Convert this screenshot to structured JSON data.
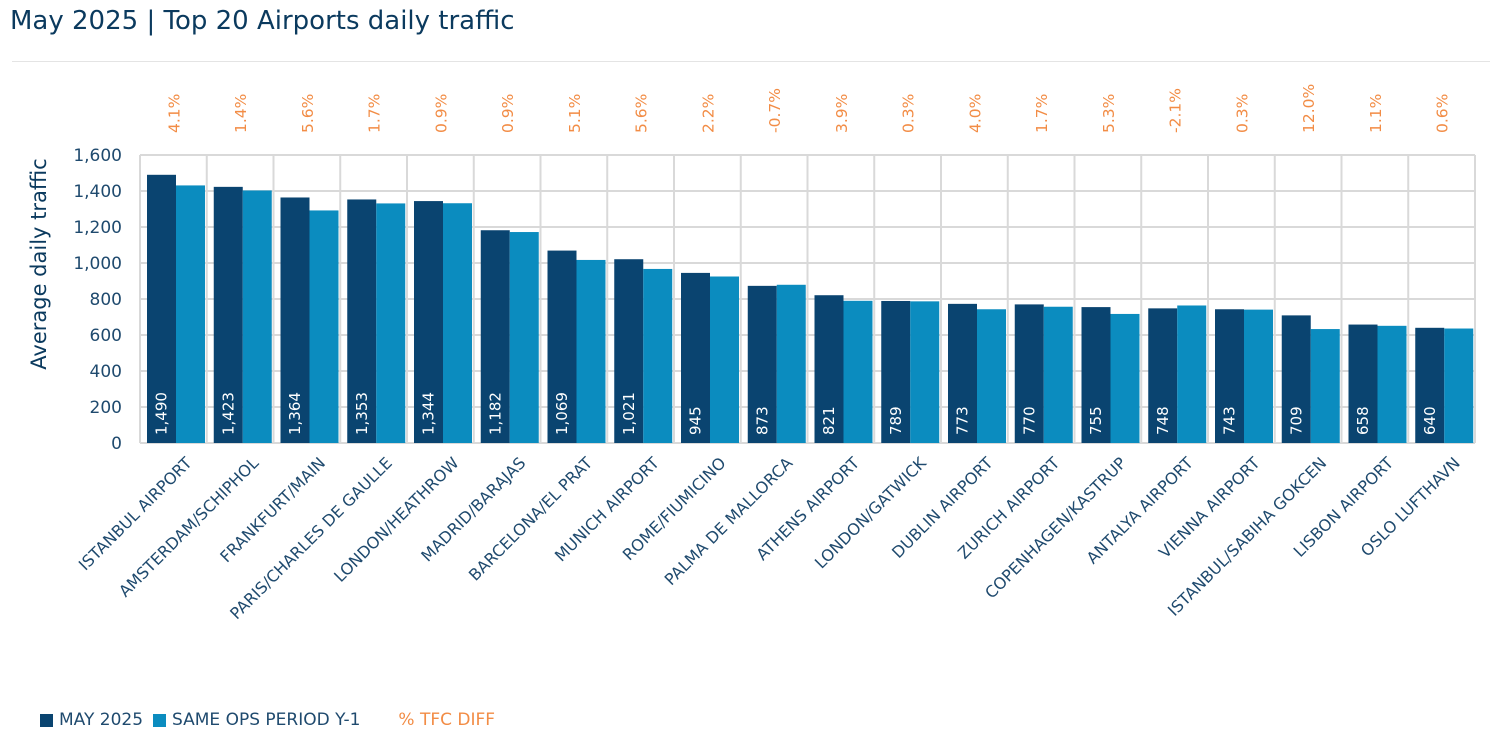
{
  "title": "May 2025 | Top 20 Airports daily traffic",
  "colors": {
    "may": "#0a4470",
    "prev": "#0b8cbf",
    "pct": "#f28c45",
    "axis": "#1f4a6e",
    "grid": "#d9d9d9"
  },
  "legend": {
    "may": "MAY 2025",
    "prev": "SAME OPS PERIOD Y-1",
    "pct": "% TFC DIFF"
  },
  "chart_data": {
    "type": "bar",
    "ylabel": "Average daily traffic",
    "ylim": [
      0,
      1600
    ],
    "yticks": [
      "0",
      "200",
      "400",
      "600",
      "800",
      "1,000",
      "1,200",
      "1,400",
      "1,600"
    ],
    "grid": true,
    "legend_position": "bottom-left",
    "categories": [
      "ISTANBUL AIRPORT",
      "AMSTERDAM/SCHIPHOL",
      "FRANKFURT/MAIN",
      "PARIS/CHARLES DE GAULLE",
      "LONDON/HEATHROW",
      "MADRID/BARAJAS",
      "BARCELONA/EL PRAT",
      "MUNICH AIRPORT",
      "ROME/FIUMICINO",
      "PALMA DE MALLORCA",
      "ATHENS AIRPORT",
      "LONDON/GATWICK",
      "DUBLIN AIRPORT",
      "ZURICH AIRPORT",
      "COPENHAGEN/KASTRUP",
      "ANTALYA AIRPORT",
      "VIENNA AIRPORT",
      "ISTANBUL/SABIHA GOKCEN",
      "LISBON AIRPORT",
      "OSLO LUFTHAVN"
    ],
    "series": [
      {
        "name": "MAY 2025",
        "values": [
          1490,
          1423,
          1364,
          1353,
          1344,
          1182,
          1069,
          1021,
          945,
          873,
          821,
          789,
          773,
          770,
          755,
          748,
          743,
          709,
          658,
          640
        ],
        "labels": [
          "1,490",
          "1,423",
          "1,364",
          "1,353",
          "1,344",
          "1,182",
          "1,069",
          "1,021",
          "945",
          "873",
          "821",
          "789",
          "773",
          "770",
          "755",
          "748",
          "743",
          "709",
          "658",
          "640"
        ]
      },
      {
        "name": "SAME OPS PERIOD Y-1",
        "values": [
          1431,
          1403,
          1292,
          1331,
          1332,
          1172,
          1017,
          967,
          925,
          879,
          790,
          787,
          743,
          757,
          717,
          764,
          741,
          633,
          651,
          636
        ]
      }
    ],
    "pct_diff": [
      "4.1%",
      "1.4%",
      "5.6%",
      "1.7%",
      "0.9%",
      "0.9%",
      "5.1%",
      "5.6%",
      "2.2%",
      "-0.7%",
      "3.9%",
      "0.3%",
      "4.0%",
      "1.7%",
      "5.3%",
      "-2.1%",
      "0.3%",
      "12.0%",
      "1.1%",
      "0.6%"
    ]
  }
}
